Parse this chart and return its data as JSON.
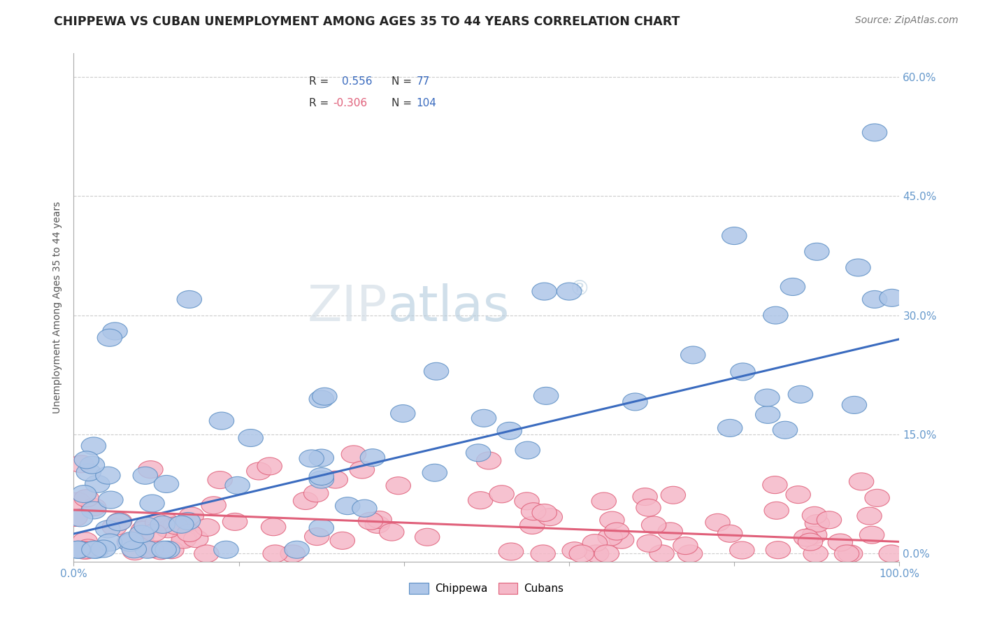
{
  "title": "CHIPPEWA VS CUBAN UNEMPLOYMENT AMONG AGES 35 TO 44 YEARS CORRELATION CHART",
  "source_text": "Source: ZipAtlas.com",
  "ylabel": "Unemployment Among Ages 35 to 44 years",
  "xlim": [
    0,
    100
  ],
  "ylim": [
    -1,
    63
  ],
  "xticks": [
    0,
    20,
    40,
    60,
    80,
    100
  ],
  "xticklabels": [
    "0.0%",
    "",
    "",
    "",
    "",
    "100.0%"
  ],
  "yticks": [
    0,
    15,
    30,
    45,
    60
  ],
  "yticklabels": [
    "0.0%",
    "15.0%",
    "30.0%",
    "45.0%",
    "60.0%"
  ],
  "chippewa_color": "#aec6e8",
  "chippewa_edge_color": "#5b8ec4",
  "cuban_color": "#f5b8c8",
  "cuban_edge_color": "#e0607a",
  "chippewa_line_color": "#3a6bbf",
  "cuban_line_color": "#e0607a",
  "R_chippewa": 0.556,
  "N_chippewa": 77,
  "R_cuban": -0.306,
  "N_cuban": 104,
  "chippewa_R_color": "#3a6bbf",
  "cuban_R_color": "#e0607a",
  "N_color": "#3a6bbf",
  "background_color": "#ffffff",
  "grid_color": "#cccccc",
  "tick_color": "#6699cc",
  "watermark_color": "#d8e4f0",
  "watermark_atlas_color": "#9bbdd4",
  "chippewa_line_start_y": 2.5,
  "chippewa_line_end_y": 27.0,
  "cuban_line_start_y": 5.5,
  "cuban_line_end_y": 1.5
}
